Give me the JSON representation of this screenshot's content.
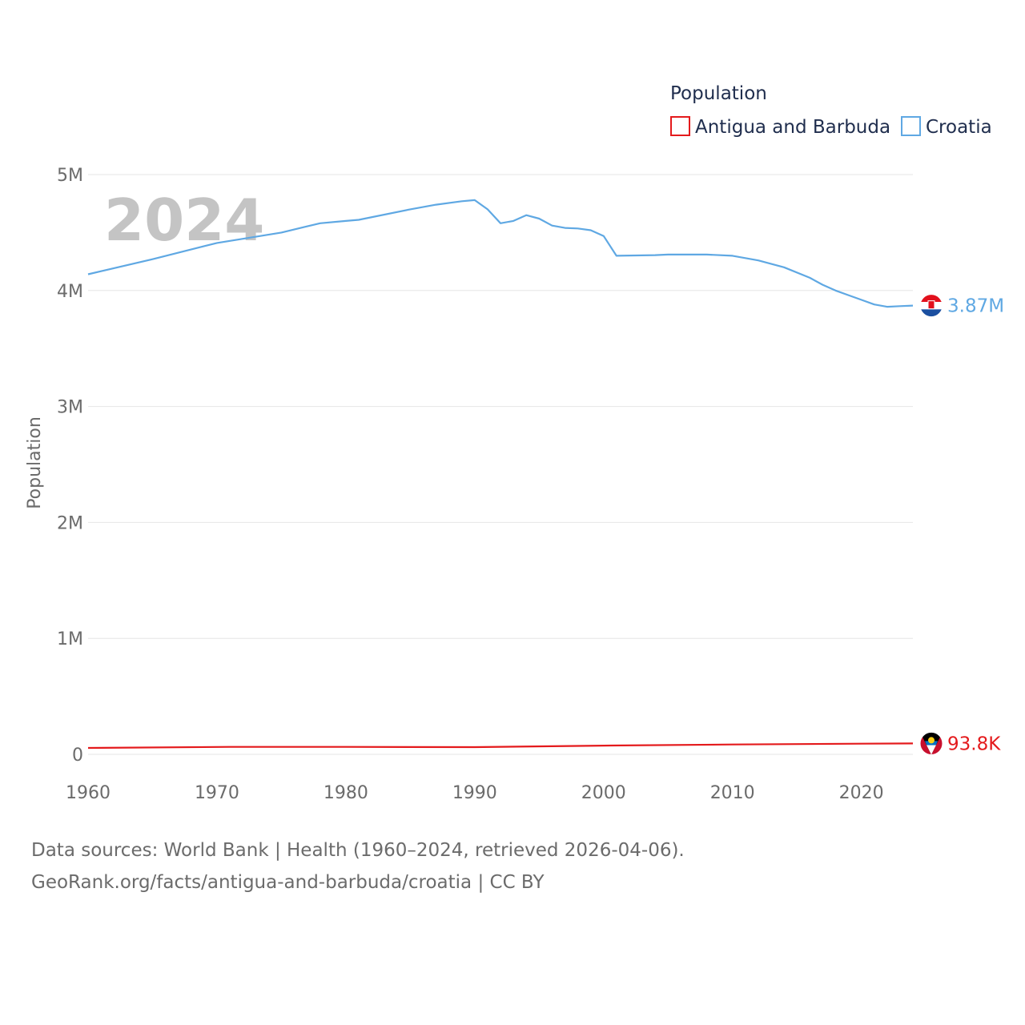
{
  "chart_data": {
    "type": "line",
    "year_label": "2024",
    "ylabel": "Population",
    "xlabel": "",
    "legend": {
      "title": "Population",
      "placement": "top-right"
    },
    "xlim": [
      1960,
      2024
    ],
    "ylim": [
      0,
      5000000
    ],
    "x_ticks": [
      1960,
      1970,
      1980,
      1990,
      2000,
      2010,
      2020
    ],
    "y_ticks": [
      {
        "value": 0,
        "label": "0"
      },
      {
        "value": 1000000,
        "label": "1M"
      },
      {
        "value": 2000000,
        "label": "2M"
      },
      {
        "value": 3000000,
        "label": "3M"
      },
      {
        "value": 4000000,
        "label": "4M"
      },
      {
        "value": 5000000,
        "label": "5M"
      }
    ],
    "grid": true,
    "series": [
      {
        "name": "Antigua and Barbuda",
        "color": "#e41a1c",
        "end_label": "93.8K",
        "flag": "antigua-and-barbuda-flag",
        "x": [
          1960,
          1971,
          1980,
          1990,
          2000,
          2010,
          2020,
          2024
        ],
        "values": [
          55000,
          64000,
          64000,
          62000,
          75000,
          85000,
          92000,
          93800
        ]
      },
      {
        "name": "Croatia",
        "color": "#5fa8e3",
        "end_label": "3.87M",
        "flag": "croatia-flag",
        "x": [
          1960,
          1965,
          1970,
          1975,
          1978,
          1980,
          1981,
          1985,
          1987,
          1989,
          1990,
          1991,
          1992,
          1993,
          1994,
          1995,
          1996,
          1997,
          1998,
          1999,
          2000,
          2001,
          2004,
          2005,
          2008,
          2010,
          2012,
          2014,
          2016,
          2017,
          2018,
          2019,
          2020,
          2021,
          2022,
          2023,
          2024
        ],
        "values": [
          4140000,
          4270000,
          4410000,
          4500000,
          4580000,
          4600000,
          4610000,
          4700000,
          4740000,
          4770000,
          4780000,
          4700000,
          4580000,
          4600000,
          4650000,
          4620000,
          4560000,
          4540000,
          4535000,
          4520000,
          4470000,
          4300000,
          4305000,
          4310000,
          4310000,
          4300000,
          4260000,
          4200000,
          4110000,
          4050000,
          4000000,
          3960000,
          3920000,
          3880000,
          3860000,
          3865000,
          3870000
        ]
      }
    ]
  },
  "footer": {
    "line1": "Data sources: World Bank | Health (1960–2024, retrieved 2026-04-06).",
    "line2": "GeoRank.org/facts/antigua-and-barbuda/croatia | CC BY"
  }
}
